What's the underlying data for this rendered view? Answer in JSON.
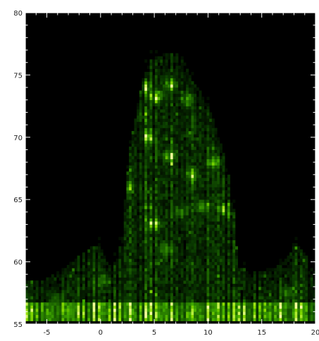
{
  "chart_data": {
    "type": "heatmap",
    "title": "",
    "xlabel": "",
    "ylabel": "",
    "xlim": [
      -7,
      20
    ],
    "ylim": [
      55,
      80
    ],
    "x_ticks": [
      "-5",
      "0",
      "5",
      "10",
      "15",
      "20"
    ],
    "y_ticks": [
      "55",
      "60",
      "65",
      "70",
      "75",
      "80"
    ],
    "grid": false,
    "colormap": [
      "#000000",
      "#0a3a00",
      "#1f6a00",
      "#3fa800",
      "#8fe000",
      "#f4ff9a"
    ],
    "envelope": [
      {
        "x": -7,
        "y": 58.6
      },
      {
        "x": -5,
        "y": 58.6
      },
      {
        "x": -3,
        "y": 59.8
      },
      {
        "x": -1,
        "y": 61.2
      },
      {
        "x": 0,
        "y": 61.3
      },
      {
        "x": 1,
        "y": 59.3
      },
      {
        "x": 2,
        "y": 61.6
      },
      {
        "x": 2.6,
        "y": 68.6
      },
      {
        "x": 3.3,
        "y": 71.8
      },
      {
        "x": 4,
        "y": 75.0
      },
      {
        "x": 4.8,
        "y": 76.4
      },
      {
        "x": 6,
        "y": 76.8
      },
      {
        "x": 7.5,
        "y": 76.8
      },
      {
        "x": 8.5,
        "y": 74.6
      },
      {
        "x": 9.5,
        "y": 73.4
      },
      {
        "x": 10.5,
        "y": 71.4
      },
      {
        "x": 11.5,
        "y": 68.6
      },
      {
        "x": 12.3,
        "y": 65.4
      },
      {
        "x": 12.8,
        "y": 59.5
      },
      {
        "x": 14,
        "y": 59.3
      },
      {
        "x": 16,
        "y": 59.4
      },
      {
        "x": 17,
        "y": 60.0
      },
      {
        "x": 18,
        "y": 61.6
      },
      {
        "x": 19,
        "y": 60.6
      },
      {
        "x": 20,
        "y": 59.6
      }
    ],
    "bright_band": {
      "y_min": 55.2,
      "y_max": 56.8
    },
    "hot_spots": [
      {
        "x": 3.0,
        "y": 72.0,
        "v": 0.8
      },
      {
        "x": 4.0,
        "y": 74.0,
        "v": 0.85
      },
      {
        "x": 5.2,
        "y": 73.3,
        "v": 0.9
      },
      {
        "x": 6.5,
        "y": 74.2,
        "v": 0.8
      },
      {
        "x": 8.0,
        "y": 73.0,
        "v": 0.75
      },
      {
        "x": 2.5,
        "y": 66.0,
        "v": 0.7
      },
      {
        "x": 4.5,
        "y": 70.0,
        "v": 0.85
      },
      {
        "x": 6.5,
        "y": 68.5,
        "v": 0.95
      },
      {
        "x": 8.5,
        "y": 67.0,
        "v": 0.8
      },
      {
        "x": 10.5,
        "y": 68.0,
        "v": 0.75
      },
      {
        "x": 5.0,
        "y": 63.0,
        "v": 0.85
      },
      {
        "x": 7.5,
        "y": 64.0,
        "v": 0.75
      },
      {
        "x": 9.5,
        "y": 64.5,
        "v": 0.8
      },
      {
        "x": 11.5,
        "y": 64.2,
        "v": 0.7
      },
      {
        "x": 6.0,
        "y": 61.0,
        "v": 0.7
      },
      {
        "x": -4.0,
        "y": 57.0,
        "v": 0.6
      },
      {
        "x": 0.3,
        "y": 58.5,
        "v": 0.55
      },
      {
        "x": 17.5,
        "y": 57.6,
        "v": 0.6
      }
    ]
  }
}
